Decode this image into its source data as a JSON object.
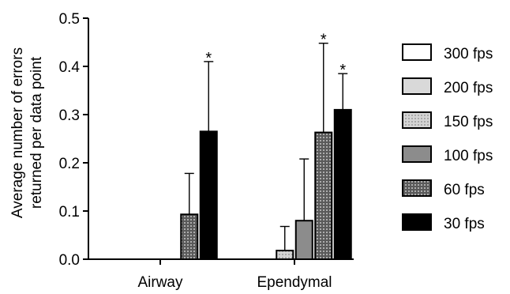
{
  "chart_data": {
    "type": "bar",
    "ylabel_lines": [
      "Average number of errors",
      "returned per data point"
    ],
    "xlabel": "",
    "ylim": [
      0,
      0.5
    ],
    "yticks": [
      "0.0",
      "0.1",
      "0.2",
      "0.3",
      "0.4",
      "0.5"
    ],
    "categories": [
      "Airway",
      "Ependymal"
    ],
    "series": [
      {
        "name": "300 fps",
        "values": [
          0,
          0
        ],
        "errors": [
          0,
          0
        ],
        "significant": [
          false,
          false
        ],
        "fill": "#ffffff",
        "pattern": "none"
      },
      {
        "name": "200 fps",
        "values": [
          0,
          0
        ],
        "errors": [
          0,
          0
        ],
        "significant": [
          false,
          false
        ],
        "fill": "#d9d9d9",
        "pattern": "none"
      },
      {
        "name": "150 fps",
        "values": [
          0,
          0.018
        ],
        "errors": [
          0,
          0.05
        ],
        "significant": [
          false,
          false
        ],
        "fill": "#c8c8c8",
        "pattern": "dots"
      },
      {
        "name": "100 fps",
        "values": [
          0,
          0.08
        ],
        "errors": [
          0,
          0.128
        ],
        "significant": [
          false,
          false
        ],
        "fill": "#8c8c8c",
        "pattern": "none"
      },
      {
        "name": "60 fps",
        "values": [
          0.093,
          0.263
        ],
        "errors": [
          0.085,
          0.185
        ],
        "significant": [
          false,
          true
        ],
        "fill": "#6e6e6e",
        "pattern": "dots"
      },
      {
        "name": "30 fps",
        "values": [
          0.265,
          0.31
        ],
        "errors": [
          0.145,
          0.075
        ],
        "significant": [
          true,
          true
        ],
        "fill": "#000000",
        "pattern": "none"
      }
    ],
    "significance_marker": "*",
    "legend_position": "right",
    "grid": false,
    "error_bars": "upper"
  }
}
